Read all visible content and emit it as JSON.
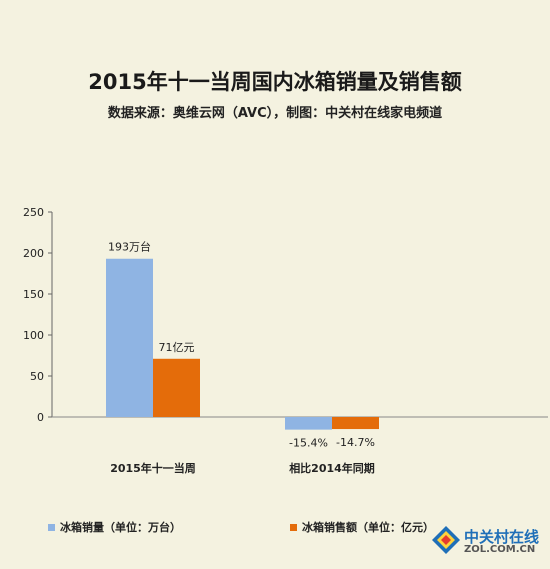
{
  "chart_data": {
    "type": "bar",
    "title": "2015年十一当周国内冰箱销量及销售额",
    "subtitle": "数据来源：奥维云网（AVC），制图：中关村在线家电频道",
    "categories": [
      "2015年十一当周",
      "相比2014年同期"
    ],
    "series": [
      {
        "name": "冰箱销量（单位：万台）",
        "values": [
          193,
          -15.4
        ],
        "labels": [
          "193万台",
          "-15.4%"
        ],
        "color": "#8fb4e3"
      },
      {
        "name": "冰箱销售额（单位：亿元）",
        "values": [
          71,
          -14.7
        ],
        "labels": [
          "71亿元",
          "-14.7%"
        ],
        "color": "#e46c0a"
      }
    ],
    "y_ticks": [
      "250",
      "200",
      "150",
      "100",
      "50",
      "0"
    ],
    "ylim": [
      0,
      250
    ],
    "grid": false,
    "legend_position": "bottom"
  },
  "logo": {
    "text": "中关村在线",
    "url": "ZOL.COM.CN"
  }
}
